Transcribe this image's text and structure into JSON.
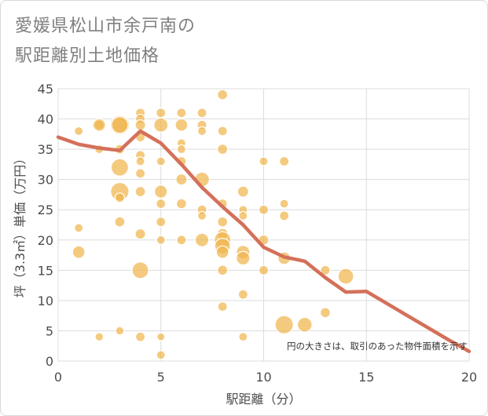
{
  "title_line1": "愛媛県松山市余戸南の",
  "title_line2": "駅距離別土地価格",
  "chart_data": {
    "type": "scatter",
    "title": "愛媛県松山市余戸南の駅距離別土地価格",
    "xlabel": "駅距離（分）",
    "ylabel": "坪（3.3㎡）単価（万円）",
    "xlim": [
      0,
      20
    ],
    "ylim": [
      0,
      45
    ],
    "xticks": [
      0,
      5,
      10,
      15,
      20
    ],
    "yticks": [
      0,
      5,
      10,
      15,
      20,
      25,
      30,
      35,
      40,
      45
    ],
    "grid": true,
    "note": "円の大きさは、取引のあった物件面積を示す",
    "colors": {
      "bubble": "#f0b54e",
      "trend": "#d4705a",
      "grid": "#dcdcdc"
    },
    "bubbles": [
      {
        "x": 1,
        "y": 38,
        "s": 0.8
      },
      {
        "x": 1,
        "y": 22,
        "s": 0.8
      },
      {
        "x": 1,
        "y": 18,
        "s": 2
      },
      {
        "x": 2,
        "y": 39,
        "s": 1
      },
      {
        "x": 2,
        "y": 39,
        "s": 2
      },
      {
        "x": 2,
        "y": 35,
        "s": 0.8
      },
      {
        "x": 2,
        "y": 4,
        "s": 0.7
      },
      {
        "x": 3,
        "y": 39,
        "s": 5.5
      },
      {
        "x": 3,
        "y": 39,
        "s": 4
      },
      {
        "x": 3,
        "y": 35,
        "s": 1
      },
      {
        "x": 3,
        "y": 32,
        "s": 4.5
      },
      {
        "x": 3,
        "y": 28,
        "s": 5
      },
      {
        "x": 3,
        "y": 27,
        "s": 1
      },
      {
        "x": 3,
        "y": 23,
        "s": 1.2
      },
      {
        "x": 3,
        "y": 5,
        "s": 0.7
      },
      {
        "x": 4,
        "y": 41,
        "s": 1
      },
      {
        "x": 4,
        "y": 40,
        "s": 1
      },
      {
        "x": 4,
        "y": 39,
        "s": 1.3
      },
      {
        "x": 4,
        "y": 37,
        "s": 1
      },
      {
        "x": 4,
        "y": 34,
        "s": 1
      },
      {
        "x": 4,
        "y": 33,
        "s": 0.8
      },
      {
        "x": 4,
        "y": 31,
        "s": 1
      },
      {
        "x": 4,
        "y": 28,
        "s": 1.2
      },
      {
        "x": 4,
        "y": 21,
        "s": 1.3
      },
      {
        "x": 4,
        "y": 15,
        "s": 4
      },
      {
        "x": 4,
        "y": 4,
        "s": 1
      },
      {
        "x": 5,
        "y": 41,
        "s": 1
      },
      {
        "x": 5,
        "y": 39,
        "s": 2.8
      },
      {
        "x": 5,
        "y": 33,
        "s": 0.8
      },
      {
        "x": 5,
        "y": 28,
        "s": 2.2
      },
      {
        "x": 5,
        "y": 26,
        "s": 1
      },
      {
        "x": 5,
        "y": 23,
        "s": 1
      },
      {
        "x": 5,
        "y": 20,
        "s": 0.8
      },
      {
        "x": 5,
        "y": 4,
        "s": 0.6
      },
      {
        "x": 5,
        "y": 1,
        "s": 0.8
      },
      {
        "x": 6,
        "y": 41,
        "s": 1
      },
      {
        "x": 6,
        "y": 39,
        "s": 2
      },
      {
        "x": 6,
        "y": 36,
        "s": 0.8
      },
      {
        "x": 6,
        "y": 35,
        "s": 0.8
      },
      {
        "x": 6,
        "y": 33,
        "s": 1
      },
      {
        "x": 6,
        "y": 30,
        "s": 1.5
      },
      {
        "x": 6,
        "y": 26,
        "s": 1.2
      },
      {
        "x": 6,
        "y": 20,
        "s": 1
      },
      {
        "x": 7,
        "y": 41,
        "s": 1
      },
      {
        "x": 7,
        "y": 39,
        "s": 1
      },
      {
        "x": 7,
        "y": 38,
        "s": 0.8
      },
      {
        "x": 7,
        "y": 30,
        "s": 3
      },
      {
        "x": 7,
        "y": 25,
        "s": 1
      },
      {
        "x": 7,
        "y": 24,
        "s": 0.8
      },
      {
        "x": 7,
        "y": 20,
        "s": 2.5
      },
      {
        "x": 8,
        "y": 44,
        "s": 1.2
      },
      {
        "x": 8,
        "y": 38,
        "s": 1
      },
      {
        "x": 8,
        "y": 35,
        "s": 1.2
      },
      {
        "x": 8,
        "y": 26,
        "s": 1
      },
      {
        "x": 8,
        "y": 23,
        "s": 1.2
      },
      {
        "x": 8,
        "y": 21,
        "s": 1.5
      },
      {
        "x": 8,
        "y": 20,
        "s": 4
      },
      {
        "x": 8,
        "y": 19,
        "s": 3.5
      },
      {
        "x": 8,
        "y": 18,
        "s": 2
      },
      {
        "x": 8,
        "y": 15,
        "s": 1.2
      },
      {
        "x": 8,
        "y": 9,
        "s": 1
      },
      {
        "x": 9,
        "y": 28,
        "s": 1.5
      },
      {
        "x": 9,
        "y": 25,
        "s": 0.8
      },
      {
        "x": 9,
        "y": 24,
        "s": 0.8
      },
      {
        "x": 9,
        "y": 18,
        "s": 2.5
      },
      {
        "x": 9,
        "y": 17,
        "s": 2.5
      },
      {
        "x": 9,
        "y": 11,
        "s": 1
      },
      {
        "x": 9,
        "y": 4,
        "s": 0.8
      },
      {
        "x": 10,
        "y": 33,
        "s": 0.8
      },
      {
        "x": 10,
        "y": 25,
        "s": 1
      },
      {
        "x": 10,
        "y": 20,
        "s": 1.2
      },
      {
        "x": 10,
        "y": 15,
        "s": 1
      },
      {
        "x": 11,
        "y": 33,
        "s": 1
      },
      {
        "x": 11,
        "y": 26,
        "s": 0.8
      },
      {
        "x": 11,
        "y": 24,
        "s": 1
      },
      {
        "x": 11,
        "y": 17,
        "s": 2
      },
      {
        "x": 11,
        "y": 6,
        "s": 5
      },
      {
        "x": 12,
        "y": 6,
        "s": 3
      },
      {
        "x": 13,
        "y": 15,
        "s": 1
      },
      {
        "x": 13,
        "y": 8,
        "s": 1.2
      },
      {
        "x": 14,
        "y": 14,
        "s": 3.5
      }
    ],
    "trend": {
      "x": [
        0,
        1,
        2,
        3,
        4,
        5,
        6,
        7,
        8,
        9,
        10,
        11,
        12,
        13,
        14,
        15,
        16,
        17,
        18,
        19,
        20
      ],
      "y": [
        37,
        35.8,
        35.2,
        34.8,
        38,
        36,
        32.5,
        28.7,
        25.5,
        22.5,
        18.8,
        17.2,
        16.5,
        13.8,
        11.4,
        11.5,
        9.5,
        7.5,
        5.5,
        3.5,
        1.6
      ]
    }
  }
}
